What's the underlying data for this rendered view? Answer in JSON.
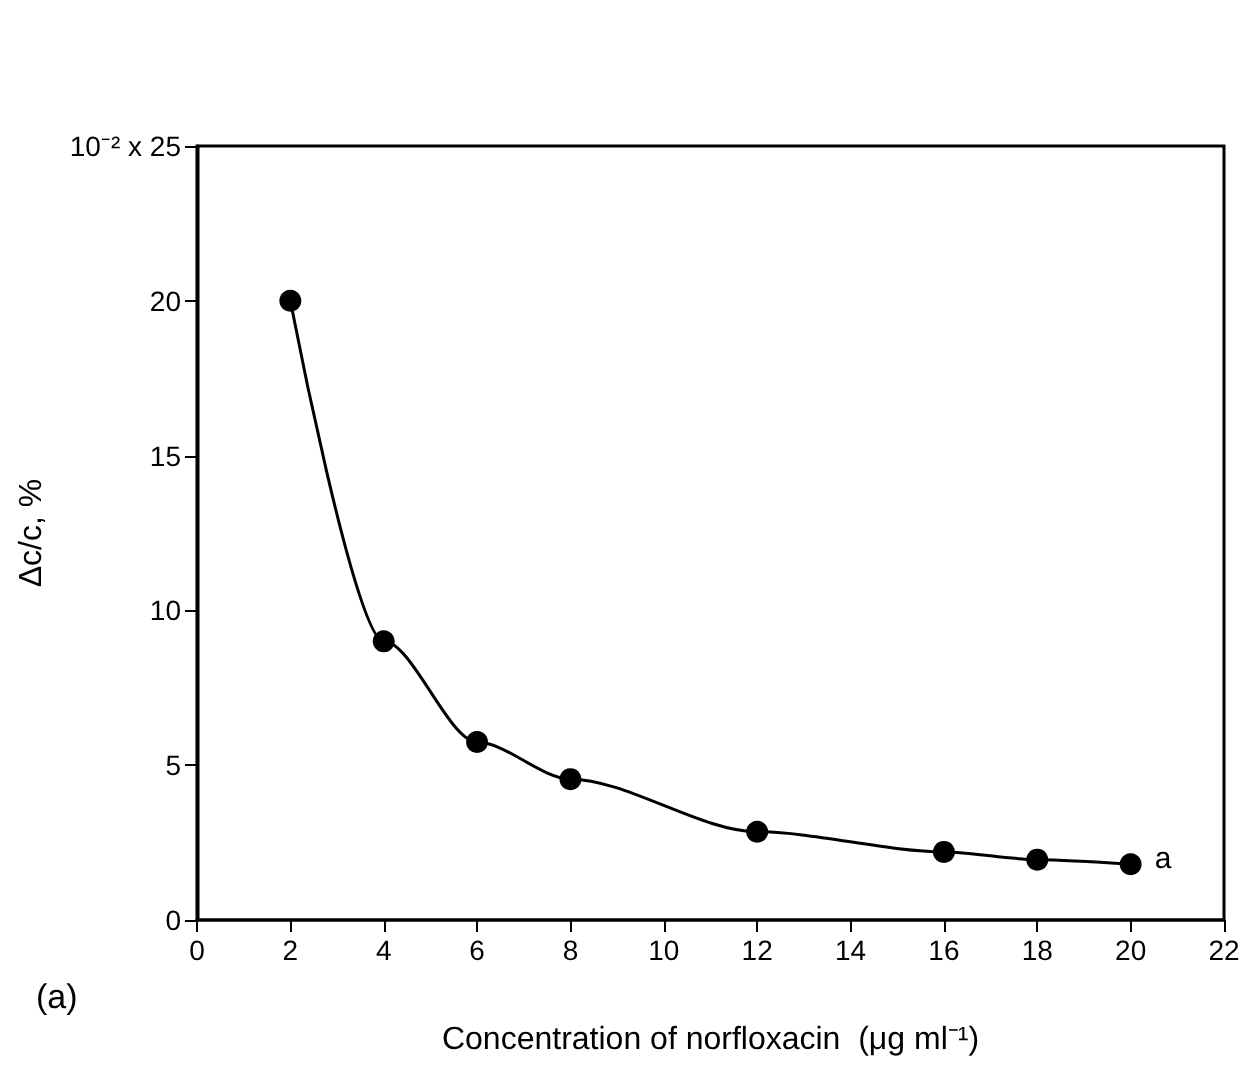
{
  "chart_data": {
    "type": "line",
    "x": [
      2,
      4,
      6,
      8,
      12,
      16,
      18,
      20
    ],
    "series": [
      {
        "color": "#000000",
        "values": [
          20,
          9.0,
          5.75,
          4.55,
          2.85,
          2.2,
          1.95,
          1.8
        ]
      }
    ],
    "xlabel": "Concentration of norfloxacin  (μg ml⁻¹)",
    "ylabel": "Δc/c, %",
    "xlim": [
      0,
      22
    ],
    "xticks": [
      0,
      2,
      4,
      6,
      8,
      10,
      12,
      14,
      16,
      18,
      20,
      22
    ],
    "ylim": [
      0,
      25
    ],
    "yticks": [
      0,
      5,
      10,
      15,
      20,
      {
        "value": 25,
        "label": "10⁻² x 25"
      }
    ],
    "annotations": [
      "(a)",
      {
        "text": "a",
        "x": 20,
        "y": 1.8
      }
    ],
    "marker": "circle",
    "line_style": "solid",
    "grid": false
  }
}
